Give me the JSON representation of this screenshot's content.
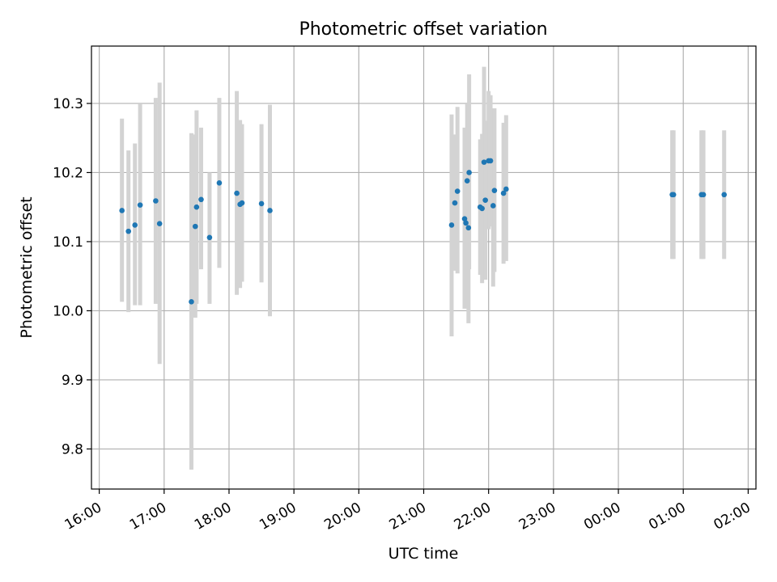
{
  "chart_data": {
    "type": "scatter",
    "title": "Photometric offset variation",
    "xlabel": "UTC time",
    "ylabel": "Photometric offset",
    "x_unit": "hours from 16:00 UTC on an axis spanning midnight",
    "xlim": [
      -0.12,
      10.12
    ],
    "ylim": [
      9.742,
      10.383
    ],
    "x_ticks": [
      {
        "value": 0,
        "label": "16:00"
      },
      {
        "value": 1,
        "label": "17:00"
      },
      {
        "value": 2,
        "label": "18:00"
      },
      {
        "value": 3,
        "label": "19:00"
      },
      {
        "value": 4,
        "label": "20:00"
      },
      {
        "value": 5,
        "label": "21:00"
      },
      {
        "value": 6,
        "label": "22:00"
      },
      {
        "value": 7,
        "label": "23:00"
      },
      {
        "value": 8,
        "label": "00:00"
      },
      {
        "value": 9,
        "label": "01:00"
      },
      {
        "value": 10,
        "label": "02:00"
      }
    ],
    "y_ticks": [
      {
        "value": 9.8,
        "label": "9.8"
      },
      {
        "value": 9.9,
        "label": "9.9"
      },
      {
        "value": 10.0,
        "label": "10.0"
      },
      {
        "value": 10.1,
        "label": "10.1"
      },
      {
        "value": 10.2,
        "label": "10.2"
      },
      {
        "value": 10.3,
        "label": "10.3"
      }
    ],
    "grid": true,
    "point_color": "#1f77b4",
    "errorbar_color": "#d3d3d3",
    "points": [
      {
        "x": 0.35,
        "y": 10.145,
        "lo": 10.013,
        "hi": 10.278
      },
      {
        "x": 0.45,
        "y": 10.115,
        "lo": 9.998,
        "hi": 10.232
      },
      {
        "x": 0.55,
        "y": 10.124,
        "lo": 10.008,
        "hi": 10.242
      },
      {
        "x": 0.63,
        "y": 10.153,
        "lo": 10.008,
        "hi": 10.3
      },
      {
        "x": 0.87,
        "y": 10.159,
        "lo": 10.01,
        "hi": 10.308
      },
      {
        "x": 0.93,
        "y": 10.126,
        "lo": 9.923,
        "hi": 10.33
      },
      {
        "x": 1.42,
        "y": 10.013,
        "lo": 9.77,
        "hi": 10.257
      },
      {
        "x": 1.48,
        "y": 10.122,
        "lo": 9.99,
        "hi": 10.255
      },
      {
        "x": 1.5,
        "y": 10.15,
        "lo": 10.01,
        "hi": 10.29
      },
      {
        "x": 1.57,
        "y": 10.161,
        "lo": 10.06,
        "hi": 10.265
      },
      {
        "x": 1.7,
        "y": 10.106,
        "lo": 10.01,
        "hi": 10.2
      },
      {
        "x": 1.85,
        "y": 10.185,
        "lo": 10.062,
        "hi": 10.308
      },
      {
        "x": 2.12,
        "y": 10.17,
        "lo": 10.023,
        "hi": 10.318
      },
      {
        "x": 2.17,
        "y": 10.154,
        "lo": 10.033,
        "hi": 10.276
      },
      {
        "x": 2.2,
        "y": 10.156,
        "lo": 10.042,
        "hi": 10.27
      },
      {
        "x": 2.5,
        "y": 10.155,
        "lo": 10.041,
        "hi": 10.27
      },
      {
        "x": 2.63,
        "y": 10.145,
        "lo": 9.992,
        "hi": 10.298
      },
      {
        "x": 6.0,
        "y": 10.217,
        "lo": 10.118,
        "hi": 10.318
      },
      {
        "x": 5.43,
        "y": 10.124,
        "lo": 9.963,
        "hi": 10.284
      },
      {
        "x": 5.48,
        "y": 10.156,
        "lo": 10.058,
        "hi": 10.255
      },
      {
        "x": 5.52,
        "y": 10.173,
        "lo": 10.054,
        "hi": 10.295
      },
      {
        "x": 5.63,
        "y": 10.133,
        "lo": 10.003,
        "hi": 10.265
      },
      {
        "x": 5.65,
        "y": 10.127,
        "lo": 10.005,
        "hi": 10.247
      },
      {
        "x": 5.67,
        "y": 10.188,
        "lo": 10.076,
        "hi": 10.3
      },
      {
        "x": 5.69,
        "y": 10.12,
        "lo": 9.982,
        "hi": 10.26
      },
      {
        "x": 5.7,
        "y": 10.2,
        "lo": 10.06,
        "hi": 10.342
      },
      {
        "x": 5.87,
        "y": 10.15,
        "lo": 10.052,
        "hi": 10.248
      },
      {
        "x": 5.9,
        "y": 10.148,
        "lo": 10.04,
        "hi": 10.256
      },
      {
        "x": 5.93,
        "y": 10.215,
        "lo": 10.077,
        "hi": 10.353
      },
      {
        "x": 5.95,
        "y": 10.16,
        "lo": 10.045,
        "hi": 10.275
      },
      {
        "x": 6.03,
        "y": 10.217,
        "lo": 10.122,
        "hi": 10.312
      },
      {
        "x": 6.07,
        "y": 10.152,
        "lo": 10.035,
        "hi": 10.27
      },
      {
        "x": 6.09,
        "y": 10.174,
        "lo": 10.056,
        "hi": 10.293
      },
      {
        "x": 6.23,
        "y": 10.17,
        "lo": 10.068,
        "hi": 10.272
      },
      {
        "x": 6.27,
        "y": 10.176,
        "lo": 10.072,
        "hi": 10.283
      },
      {
        "x": 8.83,
        "y": 10.168,
        "lo": 10.075,
        "hi": 10.261
      },
      {
        "x": 8.85,
        "y": 10.168,
        "lo": 10.075,
        "hi": 10.261
      },
      {
        "x": 9.28,
        "y": 10.168,
        "lo": 10.075,
        "hi": 10.261
      },
      {
        "x": 9.31,
        "y": 10.168,
        "lo": 10.075,
        "hi": 10.261
      },
      {
        "x": 9.63,
        "y": 10.168,
        "lo": 10.075,
        "hi": 10.261
      }
    ]
  }
}
